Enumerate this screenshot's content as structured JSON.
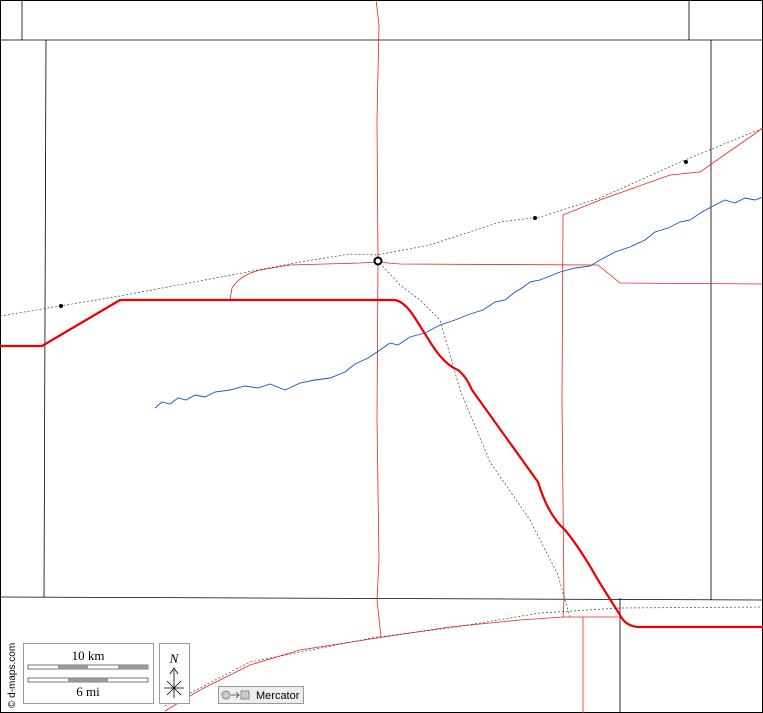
{
  "scale_bar": {
    "km_label": "10 km",
    "mi_label": "6 mi"
  },
  "north_arrow": {
    "label": "N"
  },
  "projection": {
    "label": "Mercator"
  },
  "credit": "© d-maps.com"
}
